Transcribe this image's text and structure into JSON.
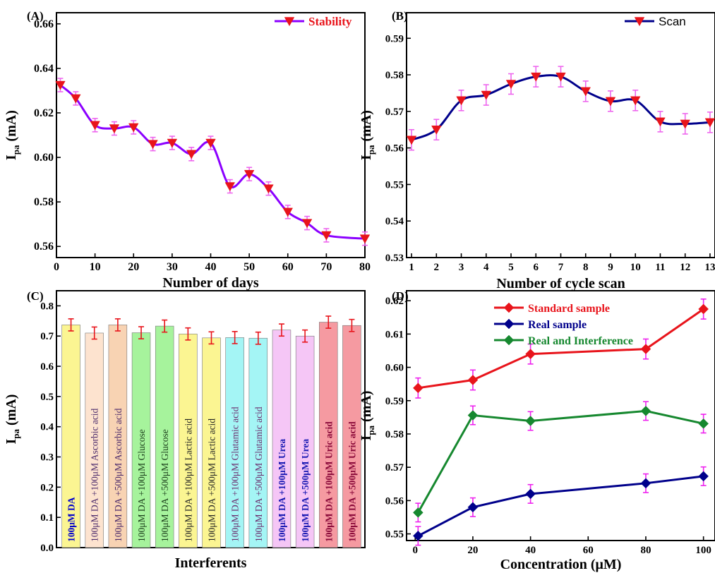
{
  "chart_data": [
    {
      "panel": "(A)",
      "type": "line",
      "xlabel": "Number of days",
      "ylabel": "I",
      "ylabel_sub": "pa",
      "ylabel_unit": " (mA)",
      "xlim": [
        0,
        80
      ],
      "ylim": [
        0.555,
        0.665
      ],
      "xticks": [
        0,
        10,
        20,
        30,
        40,
        50,
        60,
        70,
        80
      ],
      "yticks": [
        0.56,
        0.58,
        0.6,
        0.62,
        0.64,
        0.66
      ],
      "ytick_labels": [
        "0.56",
        "0.58",
        "0.60",
        "0.62",
        "0.64",
        "0.66"
      ],
      "legend": "top-right",
      "series": [
        {
          "name": "Stability",
          "color": "#8b00ff",
          "x": [
            1,
            5,
            10,
            15,
            20,
            25,
            30,
            35,
            40,
            45,
            50,
            55,
            60,
            65,
            70,
            80
          ],
          "values": [
            0.6325,
            0.6265,
            0.6145,
            0.613,
            0.6135,
            0.606,
            0.6065,
            0.6015,
            0.6065,
            0.587,
            0.5925,
            0.586,
            0.5755,
            0.5705,
            0.565,
            0.5635
          ],
          "error": 0.003
        }
      ]
    },
    {
      "panel": "(B)",
      "type": "line",
      "xlabel": "Number of cycle scan",
      "ylabel": "I",
      "ylabel_sub": "pa",
      "ylabel_unit": " (mA)",
      "xlim": [
        0.8,
        13.2
      ],
      "ylim": [
        0.53,
        0.597
      ],
      "xticks": [
        1,
        2,
        3,
        4,
        5,
        6,
        7,
        8,
        9,
        10,
        11,
        12,
        13
      ],
      "yticks": [
        0.53,
        0.54,
        0.55,
        0.56,
        0.57,
        0.58,
        0.59
      ],
      "ytick_labels": [
        "0.53",
        "0.54",
        "0.55",
        "0.56",
        "0.57",
        "0.58",
        "0.59"
      ],
      "legend": "top-right",
      "series": [
        {
          "name": "Scan",
          "color": "#00008b",
          "x": [
            1,
            2,
            3,
            4,
            5,
            6,
            7,
            8,
            9,
            10,
            11,
            12,
            13
          ],
          "values": [
            0.5622,
            0.565,
            0.573,
            0.5745,
            0.5775,
            0.5795,
            0.5795,
            0.5755,
            0.5728,
            0.573,
            0.5672,
            0.5666,
            0.567
          ],
          "error": 0.0028
        }
      ]
    },
    {
      "panel": "(C)",
      "type": "bar",
      "xlabel": "Interferents",
      "ylabel": "I",
      "ylabel_sub": "pa",
      "ylabel_unit": " (mA)",
      "ylim": [
        0,
        0.85
      ],
      "yticks": [
        0.0,
        0.1,
        0.2,
        0.3,
        0.4,
        0.5,
        0.6,
        0.7,
        0.8
      ],
      "ytick_labels": [
        "0.0",
        "0.1",
        "0.2",
        "0.3",
        "0.4",
        "0.5",
        "0.6",
        "0.7",
        "0.8"
      ],
      "categories": [
        "100μM DA",
        "100μM DA +100μM Ascorbic acid",
        "100μM DA +500μM Ascorbic acid",
        "100μM DA +100μM Glucose",
        "100μM DA +500μM Glucose",
        "100μM DA +100μM Lactic acid",
        "100μM DA +500μM Lactic acid",
        "100μM DA +100μM Glutamic acid",
        "100μM DA +500μM Glutamic acid",
        "100μM DA +100μM Urea",
        "100μM DA +500μM Urea",
        "100μM DA +100μM Uric acid",
        "100μM DA +500μM Uric acid"
      ],
      "values": [
        0.737,
        0.71,
        0.737,
        0.711,
        0.733,
        0.707,
        0.694,
        0.695,
        0.693,
        0.72,
        0.7,
        0.746,
        0.735
      ],
      "error": 0.02,
      "bar_colors": [
        "#fbf592",
        "#fde3cf",
        "#f8d3b3",
        "#a6f39c",
        "#a6f39c",
        "#fbf592",
        "#fbf592",
        "#a4f5f5",
        "#a4f5f5",
        "#f5c6f6",
        "#f5c6f6",
        "#f59aa1",
        "#f59aa1"
      ],
      "label_colors": [
        "#0000cd",
        "#4b2a6b",
        "#4b2a6b",
        "#1a3d1a",
        "#1a3d1a",
        "#222222",
        "#222222",
        "#6b2a6b",
        "#6b2a6b",
        "#1a1ab3",
        "#1a1ab3",
        "#8b0a3a",
        "#8b0a3a"
      ]
    },
    {
      "panel": "(D)",
      "type": "line",
      "xlabel": "Concentration (μM)",
      "ylabel": "I",
      "ylabel_sub": "pa",
      "ylabel_unit": " (mA)",
      "xlim": [
        -3,
        104
      ],
      "ylim": [
        0.548,
        0.623
      ],
      "xticks": [
        0,
        20,
        40,
        60,
        80,
        100
      ],
      "yticks": [
        0.55,
        0.56,
        0.57,
        0.58,
        0.59,
        0.6,
        0.61,
        0.62
      ],
      "ytick_labels": [
        "0.55",
        "0.56",
        "0.57",
        "0.58",
        "0.59",
        "0.60",
        "0.61",
        "0.62"
      ],
      "legend": "top-left",
      "x": [
        1,
        20,
        40,
        80,
        100
      ],
      "series": [
        {
          "name": "Standard sample",
          "color": "#e8141b",
          "values": [
            0.5938,
            0.5962,
            0.604,
            0.6055,
            0.6175
          ],
          "error": 0.003
        },
        {
          "name": "Real sample",
          "color": "#00008b",
          "values": [
            0.5494,
            0.558,
            0.562,
            0.5652,
            0.5673
          ],
          "error": 0.0028
        },
        {
          "name": "Real and Interference",
          "color": "#16882f",
          "values": [
            0.5564,
            0.5856,
            0.5839,
            0.5869,
            0.5831
          ],
          "error": 0.0028
        }
      ]
    }
  ]
}
